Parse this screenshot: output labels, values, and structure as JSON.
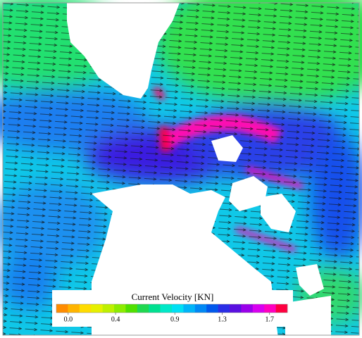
{
  "map": {
    "legend": {
      "title": "Current Velocity [KN]",
      "ticks": [
        {
          "value": 0,
          "label": "0.0"
        },
        0.4,
        0.9,
        1.3,
        1.7
      ],
      "lim": [
        -0.1,
        1.85
      ],
      "colors": [
        "#ff8c00",
        "#ffb400",
        "#ffdc00",
        "#e6f000",
        "#bef000",
        "#8cec00",
        "#50e000",
        "#20d850",
        "#00e090",
        "#00e8c8",
        "#00e0f4",
        "#00b4f8",
        "#0088f4",
        "#0058ec",
        "#2a2ee6",
        "#5a10e0",
        "#9a00ea",
        "#d800f0",
        "#ff00c0",
        "#ff0040"
      ]
    }
  }
}
